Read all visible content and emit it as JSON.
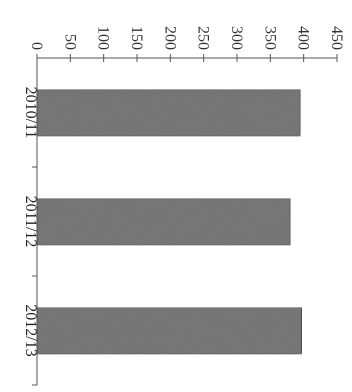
{
  "chart_data": {
    "type": "bar",
    "orientation": "horizontal",
    "categories": [
      "2010/11",
      "2011/12",
      "2012/13"
    ],
    "values": [
      395,
      380,
      397
    ],
    "xlim": [
      0,
      450
    ],
    "ticks": [
      "0",
      "50",
      "100",
      "150",
      "200",
      "250",
      "300",
      "350",
      "400",
      "450"
    ],
    "bar_color": "#7a7a7a",
    "grid": false,
    "title": "",
    "xlabel": "",
    "ylabel": ""
  }
}
